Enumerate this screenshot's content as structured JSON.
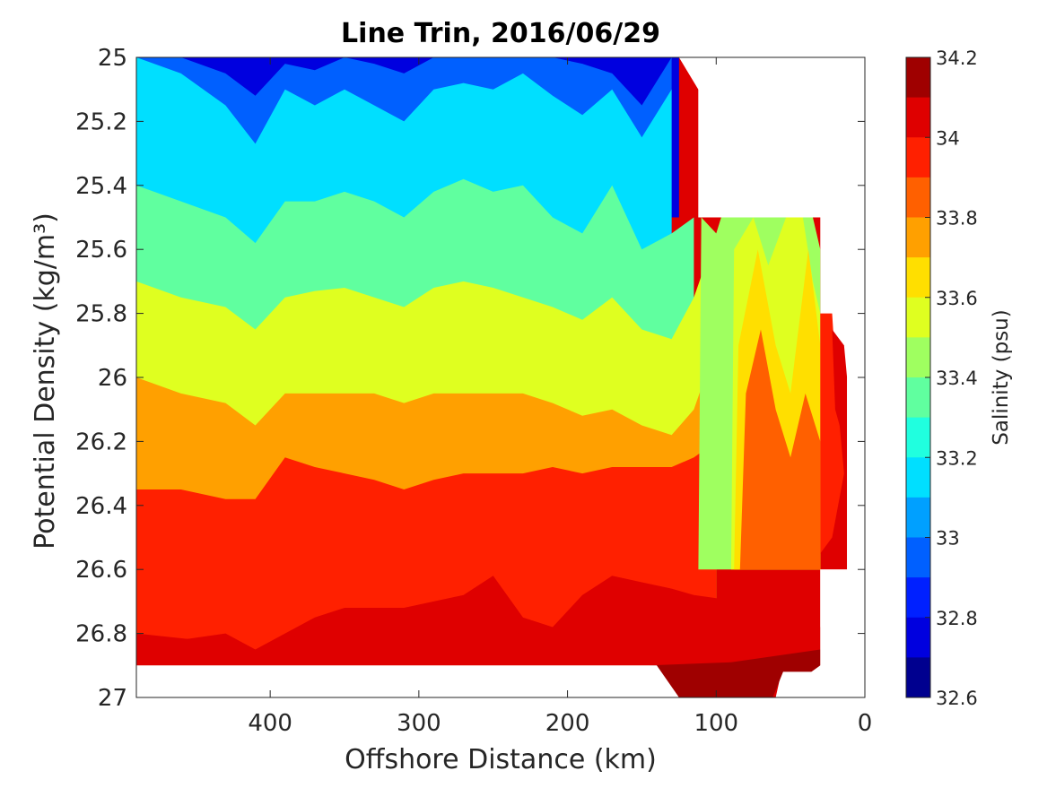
{
  "chart_data": {
    "type": "heatmap",
    "title": "Line Trin, 2016/06/29",
    "xlabel": "Offshore Distance (km)",
    "ylabel": "Potential Density (kg/m³)",
    "colorbar_label": "Salinity (psu)",
    "xlim": [
      490,
      0
    ],
    "ylim": [
      25,
      27
    ],
    "y_reversed": true,
    "x_reversed": true,
    "x_ticks": [
      400,
      300,
      200,
      100,
      0
    ],
    "x_tick_labels": [
      "400",
      "300",
      "200",
      "100",
      "0"
    ],
    "y_ticks": [
      25,
      25.2,
      25.4,
      25.6,
      25.8,
      26,
      26.2,
      26.4,
      26.6,
      26.8,
      27
    ],
    "y_tick_labels": [
      "25",
      "25.2",
      "25.4",
      "25.6",
      "25.8",
      "26",
      "26.2",
      "26.4",
      "26.6",
      "26.8",
      "27"
    ],
    "colorbar_ticks": [
      34.2,
      34,
      33.8,
      33.6,
      33.4,
      33.2,
      33,
      32.8,
      32.6
    ],
    "colorbar_tick_labels": [
      "34.2",
      "34",
      "33.8",
      "33.6",
      "33.4",
      "33.2",
      "33",
      "32.8",
      "32.6"
    ],
    "levels": [
      32.6,
      32.7,
      32.8,
      32.9,
      33.0,
      33.1,
      33.2,
      33.3,
      33.4,
      33.5,
      33.6,
      33.7,
      33.8,
      33.9,
      34.0,
      34.1,
      34.2
    ],
    "level_colors": [
      "#00008f",
      "#0000df",
      "#0020ff",
      "#0060ff",
      "#00a0ff",
      "#00dfff",
      "#20ffdf",
      "#60ff9f",
      "#9fff60",
      "#dfff20",
      "#ffdf00",
      "#ffa000",
      "#ff6000",
      "#ff2000",
      "#df0000",
      "#9f0000"
    ],
    "data_region_boundary": {
      "x_km": [
        490,
        125,
        112,
        112,
        30,
        30,
        12,
        12,
        60,
        75,
        135,
        140,
        490
      ],
      "y_sigma": [
        25.0,
        25.0,
        25.1,
        25.5,
        25.5,
        26.6,
        26.6,
        26.0,
        27.0,
        27.0,
        27.0,
        26.9,
        26.9
      ]
    },
    "stations_km": [
      490,
      460,
      430,
      410,
      390,
      370,
      350,
      330,
      310,
      290,
      270,
      250,
      230,
      210,
      190,
      170,
      150,
      130,
      115,
      100,
      85,
      70,
      55,
      40,
      30,
      15
    ],
    "isohaline_depths": {
      "32.8": [
        25.0,
        25.0,
        25.05,
        25.12,
        25.02,
        25.04,
        25.0,
        25.02,
        25.05,
        25.0,
        25.0,
        25.0,
        25.0,
        25.0,
        25.02,
        25.05,
        25.15,
        25.0
      ],
      "33.0": [
        25.0,
        25.05,
        25.15,
        25.27,
        25.1,
        25.15,
        25.1,
        25.15,
        25.2,
        25.1,
        25.08,
        25.1,
        25.05,
        25.12,
        25.18,
        25.1,
        25.25,
        25.1
      ],
      "33.2": [
        25.4,
        25.45,
        25.5,
        25.58,
        25.45,
        25.45,
        25.42,
        25.45,
        25.5,
        25.42,
        25.38,
        25.42,
        25.4,
        25.5,
        25.55,
        25.4,
        25.6,
        25.55,
        25.5
      ],
      "33.4": [
        25.7,
        25.75,
        25.78,
        25.85,
        25.75,
        25.73,
        25.72,
        25.75,
        25.78,
        25.72,
        25.7,
        25.72,
        25.75,
        25.78,
        25.82,
        25.75,
        25.85,
        25.88,
        25.75,
        25.55
      ],
      "33.6": [
        26.0,
        26.05,
        26.08,
        26.15,
        26.05,
        26.05,
        26.05,
        26.05,
        26.08,
        26.05,
        26.05,
        26.05,
        26.05,
        26.08,
        26.12,
        26.1,
        26.15,
        26.18,
        26.1,
        25.9
      ],
      "33.8": [
        26.35,
        26.35,
        26.38,
        26.38,
        26.25,
        26.28,
        26.3,
        26.32,
        26.35,
        26.32,
        26.3,
        26.3,
        26.3,
        26.28,
        26.3,
        26.28,
        26.28,
        26.28,
        26.25,
        26.2
      ],
      "34.0": [
        26.85,
        26.82,
        26.8,
        26.85,
        26.8,
        26.75,
        26.72,
        26.72,
        26.72,
        26.7,
        26.68,
        26.62,
        26.75,
        26.78,
        26.68,
        26.62,
        26.64,
        26.66,
        26.68,
        26.69,
        26.7,
        26.68,
        26.6,
        26.55,
        26.55
      ]
    }
  }
}
